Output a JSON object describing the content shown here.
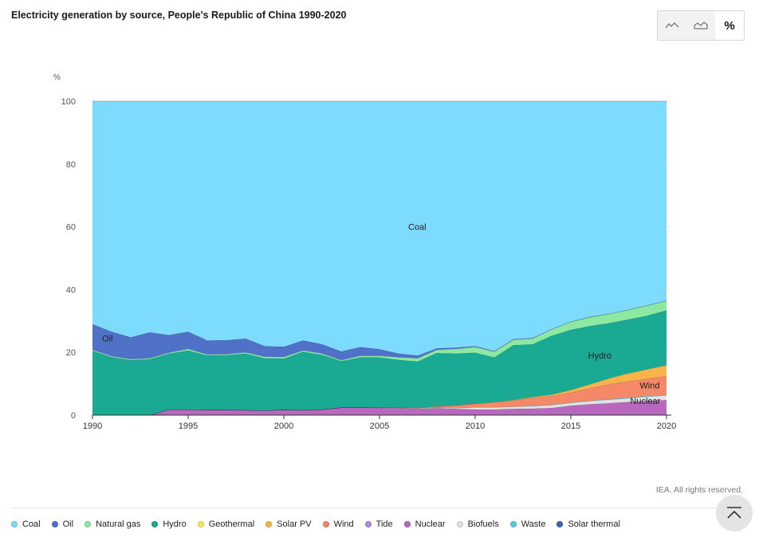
{
  "header": {
    "title": "Electricity generation by source, People's Republic of China 1990-2020"
  },
  "toolbar": {
    "options": [
      {
        "name": "line-chart-icon",
        "label": ""
      },
      {
        "name": "area-chart-icon",
        "label": ""
      },
      {
        "name": "percent-view-button",
        "label": "%"
      }
    ],
    "active": "percent"
  },
  "footer": {
    "credit": "IEA. All rights reserved."
  },
  "legend": [
    {
      "label": "Coal",
      "color": "#7ddcfd"
    },
    {
      "label": "Oil",
      "color": "#4f72c8"
    },
    {
      "label": "Natural gas",
      "color": "#8ce9a2"
    },
    {
      "label": "Hydro",
      "color": "#1aaa94"
    },
    {
      "label": "Geothermal",
      "color": "#f7ea58"
    },
    {
      "label": "Solar PV",
      "color": "#f8b448"
    },
    {
      "label": "Wind",
      "color": "#f58866"
    },
    {
      "label": "Tide",
      "color": "#a88de0"
    },
    {
      "label": "Nuclear",
      "color": "#b868bf"
    },
    {
      "label": "Biofuels",
      "color": "#e2e2e2"
    },
    {
      "label": "Waste",
      "color": "#5cc6e0"
    },
    {
      "label": "Solar thermal",
      "color": "#3c66b6"
    }
  ],
  "chart_data": {
    "type": "area",
    "stacked": true,
    "title": "Electricity generation by source, People's Republic of China 1990-2020",
    "ylabel": "%",
    "ylim": [
      0,
      100
    ],
    "yticks": [
      0,
      20,
      40,
      60,
      80,
      100
    ],
    "xlim": [
      1990,
      2020
    ],
    "xticks": [
      1990,
      1995,
      2000,
      2005,
      2010,
      2015,
      2020
    ],
    "grid": true,
    "legend_position": "bottom",
    "x": [
      1990,
      1991,
      1992,
      1993,
      1994,
      1995,
      1996,
      1997,
      1998,
      1999,
      2000,
      2001,
      2002,
      2003,
      2004,
      2005,
      2006,
      2007,
      2008,
      2009,
      2010,
      2011,
      2012,
      2013,
      2014,
      2015,
      2016,
      2017,
      2018,
      2019,
      2020
    ],
    "series": [
      {
        "name": "Nuclear",
        "color": "#b868bf",
        "values": [
          0,
          0,
          0,
          0,
          1.8,
          1.8,
          1.7,
          1.7,
          1.6,
          1.5,
          1.7,
          1.6,
          1.8,
          2.4,
          2.4,
          2.3,
          2.2,
          2.0,
          2.2,
          2.0,
          1.8,
          1.8,
          2.0,
          2.1,
          2.3,
          3.0,
          3.5,
          3.8,
          4.2,
          4.6,
          4.8
        ]
      },
      {
        "name": "Biofuels",
        "color": "#e2e2e2",
        "values": [
          0,
          0,
          0,
          0,
          0,
          0,
          0,
          0,
          0,
          0,
          0,
          0,
          0,
          0,
          0,
          0.1,
          0.1,
          0.2,
          0.2,
          0.3,
          0.7,
          0.7,
          0.7,
          0.8,
          0.9,
          0.9,
          1.0,
          1.1,
          1.2,
          1.3,
          1.5
        ]
      },
      {
        "name": "Waste",
        "color": "#5cc6e0",
        "values": [
          0,
          0,
          0,
          0,
          0,
          0,
          0,
          0,
          0,
          0,
          0,
          0,
          0,
          0,
          0,
          0,
          0,
          0,
          0,
          0,
          0,
          0,
          0,
          0.1,
          0.1,
          0.1,
          0.1,
          0.2,
          0.2,
          0.2,
          0.2
        ]
      },
      {
        "name": "Wind",
        "color": "#f58866",
        "values": [
          0,
          0,
          0,
          0,
          0,
          0,
          0,
          0,
          0,
          0,
          0,
          0,
          0,
          0,
          0,
          0,
          0.1,
          0.1,
          0.4,
          0.8,
          1.2,
          1.5,
          2.0,
          2.6,
          2.8,
          3.2,
          4.0,
          4.8,
          5.2,
          5.5,
          6.0
        ]
      },
      {
        "name": "Solar PV",
        "color": "#f8b448",
        "values": [
          0,
          0,
          0,
          0,
          0,
          0,
          0,
          0,
          0,
          0,
          0,
          0,
          0,
          0,
          0,
          0,
          0,
          0,
          0,
          0,
          0,
          0.1,
          0.1,
          0.2,
          0.4,
          0.8,
          1.2,
          1.8,
          2.5,
          3.0,
          3.4
        ]
      },
      {
        "name": "Hydro",
        "color": "#1aaa94",
        "values": [
          20.5,
          18.5,
          17.5,
          17.8,
          17.8,
          18.8,
          17.3,
          17.4,
          18.0,
          16.6,
          16.3,
          18.6,
          17.4,
          14.8,
          16.0,
          16.0,
          15.2,
          14.8,
          17.0,
          16.5,
          16.2,
          14.3,
          17.5,
          16.8,
          18.8,
          19.2,
          18.6,
          17.6,
          17.2,
          17.1,
          17.5
        ]
      },
      {
        "name": "Natural gas",
        "color": "#8ce9a2",
        "values": [
          0.3,
          0.3,
          0.3,
          0.3,
          0.3,
          0.5,
          0.3,
          0.3,
          0.4,
          0.5,
          0.5,
          0.4,
          0.4,
          0.3,
          0.5,
          0.5,
          0.8,
          1.0,
          1.0,
          1.5,
          1.8,
          1.8,
          1.7,
          1.8,
          2.0,
          2.5,
          2.8,
          2.9,
          3.0,
          3.2,
          3.0
        ]
      },
      {
        "name": "Oil",
        "color": "#4f72c8",
        "values": [
          8.2,
          7.8,
          7.0,
          8.3,
          5.6,
          5.5,
          4.5,
          4.5,
          4.4,
          3.4,
          3.3,
          3.2,
          3.0,
          2.8,
          2.8,
          2.1,
          1.2,
          0.9,
          0.5,
          0.4,
          0.3,
          0.2,
          0.2,
          0.2,
          0.1,
          0.1,
          0.1,
          0.1,
          0.1,
          0.1,
          0.1
        ]
      },
      {
        "name": "Coal",
        "color": "#7ddcfd",
        "values": [
          71.0,
          73.4,
          75.2,
          73.6,
          74.5,
          73.4,
          76.2,
          76.1,
          75.6,
          78.0,
          78.2,
          76.2,
          77.4,
          79.7,
          78.3,
          79.0,
          80.4,
          81.0,
          78.7,
          78.5,
          78.0,
          79.6,
          75.8,
          75.4,
          72.6,
          70.2,
          68.7,
          67.7,
          66.4,
          65.0,
          63.5
        ]
      }
    ],
    "annotations": [
      {
        "text": "Coal",
        "x": 2006.5,
        "y": 59
      },
      {
        "text": "Oil",
        "x": 1990.5,
        "y": 23.5
      },
      {
        "text": "Hydro",
        "x": 2015.9,
        "y": 18
      },
      {
        "text": "Wind",
        "x": 2018.6,
        "y": 8.5
      },
      {
        "text": "Nuclear",
        "x": 2018.1,
        "y": 3.5
      }
    ]
  }
}
